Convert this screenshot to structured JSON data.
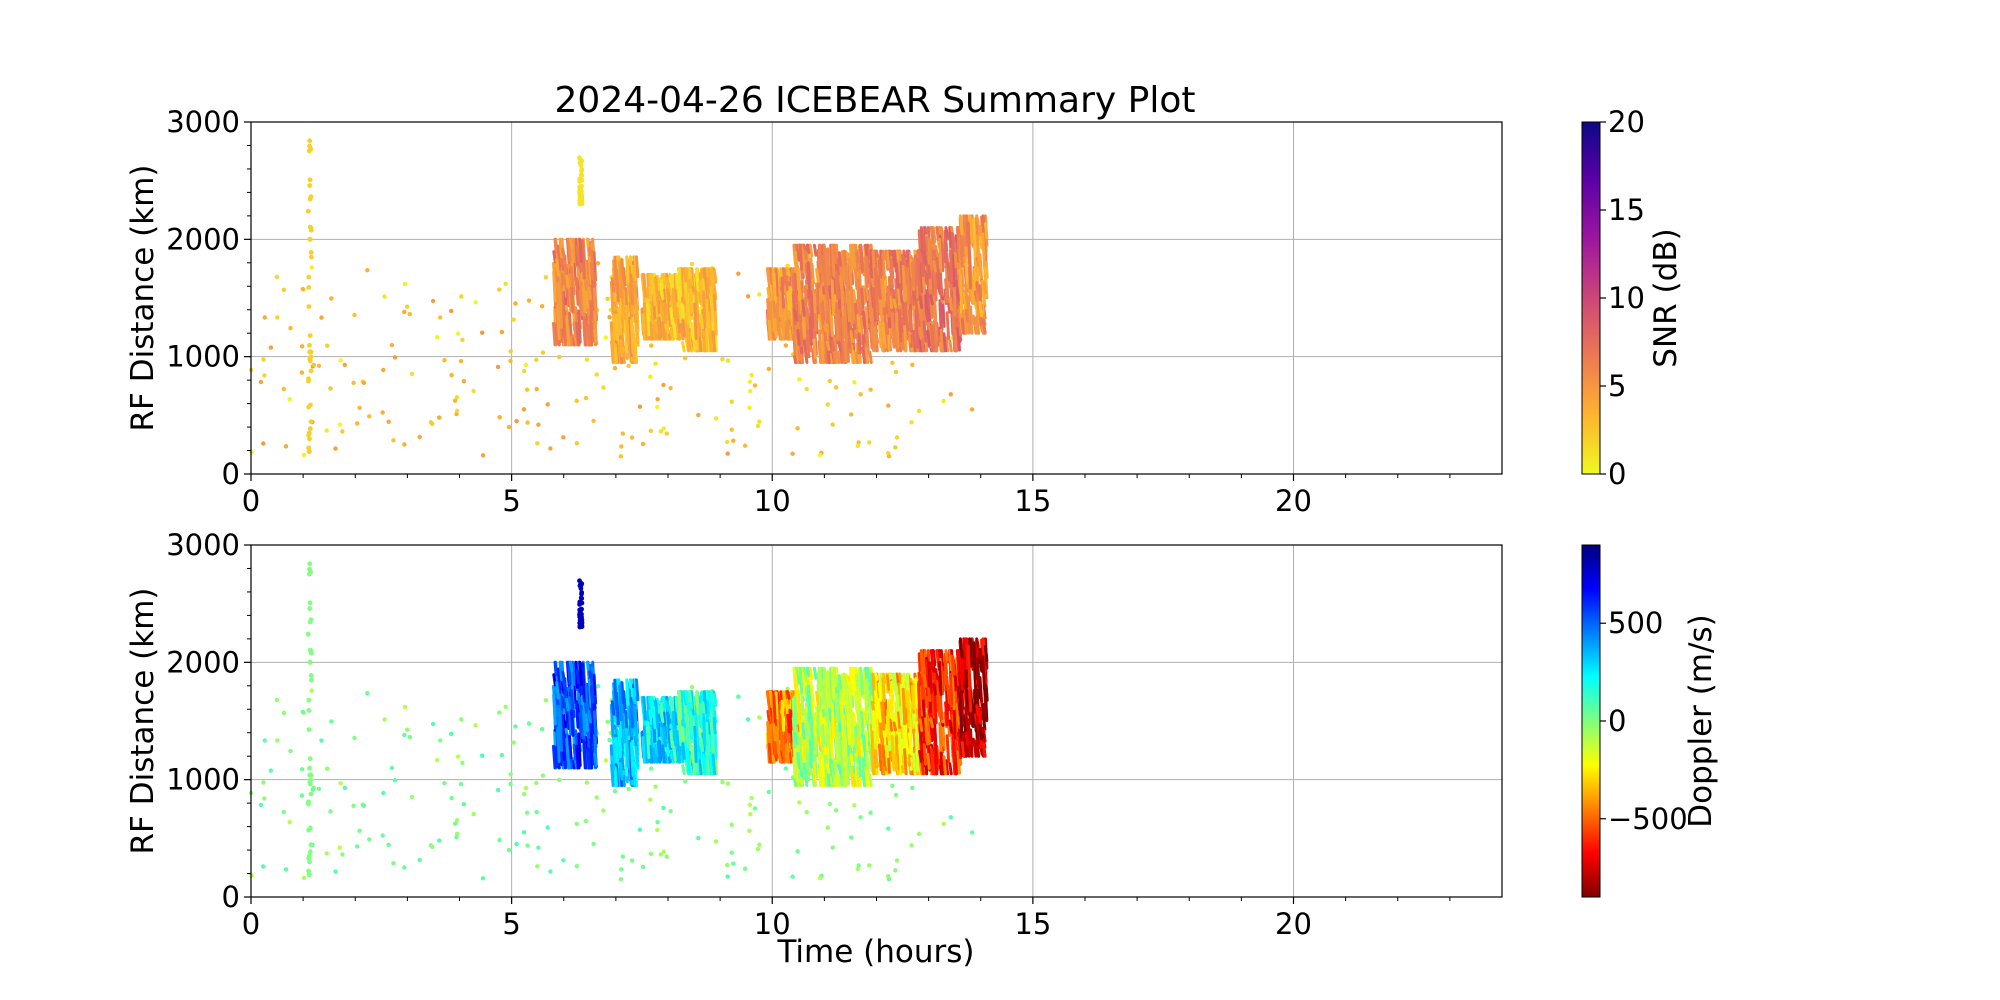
{
  "figure": {
    "title": "2024-04-26 ICEBEAR Summary Plot"
  },
  "chart_data": [
    {
      "type": "scatter",
      "ylabel": "RF Distance (km)",
      "xlabel": "",
      "xlim": [
        0,
        24
      ],
      "ylim": [
        0,
        3000
      ],
      "xticks": [
        "0",
        "5",
        "10",
        "15",
        "20"
      ],
      "yticks": [
        "0",
        "1000",
        "2000",
        "3000"
      ],
      "grid": true,
      "color_variable": "SNR (dB)",
      "colorbar": {
        "label": "SNR (dB)",
        "range": [
          0,
          20
        ],
        "ticks": [
          "0",
          "5",
          "10",
          "15",
          "20"
        ],
        "colormap": "plasma_r",
        "stops": [
          "#f0f921",
          "#fdb42f",
          "#ed7953",
          "#cc4778",
          "#9c179e",
          "#5c01a6",
          "#0d0887"
        ]
      },
      "clusters": [
        {
          "t": [
            1.1,
            1.16
          ],
          "r": [
            0,
            2950
          ],
          "value": 2
        },
        {
          "t": [
            5.8,
            6.6
          ],
          "r": [
            1100,
            2000
          ],
          "value": 6
        },
        {
          "t": [
            6.3,
            6.35
          ],
          "r": [
            2300,
            2700
          ],
          "value": 1
        },
        {
          "t": [
            6.9,
            7.4
          ],
          "r": [
            950,
            1850
          ],
          "value": 4
        },
        {
          "t": [
            7.5,
            8.2
          ],
          "r": [
            1150,
            1700
          ],
          "value": 3
        },
        {
          "t": [
            8.2,
            8.9
          ],
          "r": [
            1050,
            1750
          ],
          "value": 3
        },
        {
          "t": [
            9.9,
            10.5
          ],
          "r": [
            1150,
            1750
          ],
          "value": 5
        },
        {
          "t": [
            10.4,
            11.9
          ],
          "r": [
            950,
            1950
          ],
          "value": 6
        },
        {
          "t": [
            11.9,
            12.9
          ],
          "r": [
            1050,
            1900
          ],
          "value": 6
        },
        {
          "t": [
            12.8,
            13.6
          ],
          "r": [
            1050,
            2100
          ],
          "value": 7
        },
        {
          "t": [
            13.6,
            14.1
          ],
          "r": [
            1200,
            2200
          ],
          "value": 5
        }
      ],
      "scatter_points": {
        "t_range": [
          0,
          14
        ],
        "r_range": [
          150,
          1800
        ],
        "value_range": [
          0,
          5
        ]
      }
    },
    {
      "type": "scatter",
      "ylabel": "RF Distance (km)",
      "xlabel": "Time (hours)",
      "xlim": [
        0,
        24
      ],
      "ylim": [
        0,
        3000
      ],
      "xticks": [
        "0",
        "5",
        "10",
        "15",
        "20"
      ],
      "yticks": [
        "0",
        "1000",
        "2000",
        "3000"
      ],
      "grid": true,
      "color_variable": "Doppler (m/s)",
      "colorbar": {
        "label": "Doppler (m/s)",
        "range": [
          -900,
          900
        ],
        "ticks": [
          "−500",
          "0",
          "500"
        ],
        "tick_values": [
          -500,
          0,
          500
        ],
        "colormap": "jet_r",
        "stops": [
          "#800000",
          "#ff0000",
          "#ff8000",
          "#ffff00",
          "#80ff80",
          "#00ffff",
          "#0080ff",
          "#0000ff",
          "#000080"
        ]
      },
      "clusters": [
        {
          "t": [
            1.1,
            1.16
          ],
          "r": [
            0,
            2950
          ],
          "value": 0
        },
        {
          "t": [
            5.8,
            6.6
          ],
          "r": [
            1100,
            2000
          ],
          "value": 550
        },
        {
          "t": [
            6.3,
            6.35
          ],
          "r": [
            2300,
            2700
          ],
          "value": 800
        },
        {
          "t": [
            6.9,
            7.4
          ],
          "r": [
            950,
            1850
          ],
          "value": 350
        },
        {
          "t": [
            7.5,
            8.2
          ],
          "r": [
            1150,
            1700
          ],
          "value": 250
        },
        {
          "t": [
            8.2,
            8.9
          ],
          "r": [
            1050,
            1750
          ],
          "value": 150
        },
        {
          "t": [
            9.9,
            10.5
          ],
          "r": [
            1150,
            1750
          ],
          "value": -450
        },
        {
          "t": [
            10.4,
            11.9
          ],
          "r": [
            950,
            1950
          ],
          "value": -100
        },
        {
          "t": [
            11.9,
            12.9
          ],
          "r": [
            1050,
            1900
          ],
          "value": -300
        },
        {
          "t": [
            12.8,
            13.6
          ],
          "r": [
            1050,
            2100
          ],
          "value": -600
        },
        {
          "t": [
            13.6,
            14.1
          ],
          "r": [
            1200,
            2200
          ],
          "value": -800
        }
      ],
      "scatter_points": {
        "t_range": [
          0,
          14
        ],
        "r_range": [
          150,
          1800
        ],
        "value_range": [
          -100,
          100
        ]
      }
    }
  ]
}
